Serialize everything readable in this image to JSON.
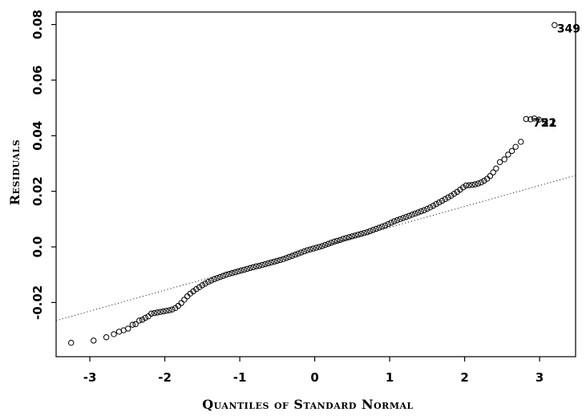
{
  "chart_data": {
    "type": "scatter",
    "title": "",
    "xlabel": "Quantiles of Standard Normal",
    "ylabel": "Residuals",
    "xlim": [
      -3.45,
      3.48
    ],
    "ylim": [
      -0.0395,
      0.0845
    ],
    "x_ticks": [
      -3,
      -2,
      -1,
      0,
      1,
      2,
      3
    ],
    "x_tick_labels": [
      "-3",
      "-2",
      "-1",
      "0",
      "1",
      "2",
      "3"
    ],
    "y_ticks": [
      -0.02,
      0.0,
      0.02,
      0.04,
      0.06,
      0.08
    ],
    "y_tick_labels": [
      "-0.02",
      "0.0",
      "0.02",
      "0.04",
      "0.06",
      "0.08"
    ],
    "grid": false,
    "marker": "open-circle",
    "reference_line": {
      "style": "dotted",
      "x": [
        -3.45,
        3.48
      ],
      "y": [
        -0.0265,
        0.0257
      ]
    },
    "points": [
      {
        "x": -3.25,
        "y": -0.0345
      },
      {
        "x": -2.95,
        "y": -0.0337
      },
      {
        "x": -2.78,
        "y": -0.0325
      },
      {
        "x": -2.68,
        "y": -0.0314
      },
      {
        "x": -2.61,
        "y": -0.0305
      },
      {
        "x": -2.55,
        "y": -0.03
      },
      {
        "x": -2.49,
        "y": -0.0294
      },
      {
        "x": -2.43,
        "y": -0.028
      },
      {
        "x": -2.39,
        "y": -0.0278
      },
      {
        "x": -2.34,
        "y": -0.0265
      },
      {
        "x": -2.3,
        "y": -0.0262
      },
      {
        "x": -2.26,
        "y": -0.0255
      },
      {
        "x": -2.22,
        "y": -0.025
      },
      {
        "x": -2.18,
        "y": -0.024
      },
      {
        "x": -2.14,
        "y": -0.0238
      },
      {
        "x": -2.1,
        "y": -0.0236
      },
      {
        "x": -2.06,
        "y": -0.0234
      },
      {
        "x": -2.02,
        "y": -0.0232
      },
      {
        "x": -1.98,
        "y": -0.023
      },
      {
        "x": -1.94,
        "y": -0.0228
      },
      {
        "x": -1.9,
        "y": -0.0225
      },
      {
        "x": -1.86,
        "y": -0.022
      },
      {
        "x": -1.82,
        "y": -0.0212
      },
      {
        "x": -1.78,
        "y": -0.0202
      },
      {
        "x": -1.74,
        "y": -0.019
      },
      {
        "x": -1.7,
        "y": -0.0178
      },
      {
        "x": -1.66,
        "y": -0.0168
      },
      {
        "x": -1.62,
        "y": -0.016
      },
      {
        "x": -1.58,
        "y": -0.0152
      },
      {
        "x": -1.54,
        "y": -0.0145
      },
      {
        "x": -1.5,
        "y": -0.0138
      },
      {
        "x": -1.46,
        "y": -0.0132
      },
      {
        "x": -1.42,
        "y": -0.0126
      },
      {
        "x": -1.38,
        "y": -0.0121
      },
      {
        "x": -1.34,
        "y": -0.0116
      },
      {
        "x": -1.3,
        "y": -0.0112
      },
      {
        "x": -1.26,
        "y": -0.0108
      },
      {
        "x": -1.22,
        "y": -0.0104
      },
      {
        "x": -1.18,
        "y": -0.01
      },
      {
        "x": -1.14,
        "y": -0.0097
      },
      {
        "x": -1.1,
        "y": -0.0094
      },
      {
        "x": -1.06,
        "y": -0.0091
      },
      {
        "x": -1.02,
        "y": -0.0088
      },
      {
        "x": -0.98,
        "y": -0.0085
      },
      {
        "x": -0.94,
        "y": -0.0082
      },
      {
        "x": -0.9,
        "y": -0.0079
      },
      {
        "x": -0.86,
        "y": -0.0076
      },
      {
        "x": -0.82,
        "y": -0.0073
      },
      {
        "x": -0.78,
        "y": -0.007
      },
      {
        "x": -0.74,
        "y": -0.0068
      },
      {
        "x": -0.7,
        "y": -0.0065
      },
      {
        "x": -0.66,
        "y": -0.0062
      },
      {
        "x": -0.62,
        "y": -0.0059
      },
      {
        "x": -0.58,
        "y": -0.0056
      },
      {
        "x": -0.54,
        "y": -0.0053
      },
      {
        "x": -0.5,
        "y": -0.005
      },
      {
        "x": -0.46,
        "y": -0.0047
      },
      {
        "x": -0.42,
        "y": -0.0044
      },
      {
        "x": -0.38,
        "y": -0.004
      },
      {
        "x": -0.34,
        "y": -0.0036
      },
      {
        "x": -0.3,
        "y": -0.0032
      },
      {
        "x": -0.26,
        "y": -0.0028
      },
      {
        "x": -0.22,
        "y": -0.0024
      },
      {
        "x": -0.18,
        "y": -0.002
      },
      {
        "x": -0.14,
        "y": -0.0016
      },
      {
        "x": -0.1,
        "y": -0.0012
      },
      {
        "x": -0.06,
        "y": -0.0009
      },
      {
        "x": -0.02,
        "y": -0.0006
      },
      {
        "x": 0.02,
        "y": -0.0003
      },
      {
        "x": 0.06,
        "y": 0.0
      },
      {
        "x": 0.1,
        "y": 0.0003
      },
      {
        "x": 0.14,
        "y": 0.0007
      },
      {
        "x": 0.18,
        "y": 0.0011
      },
      {
        "x": 0.22,
        "y": 0.0015
      },
      {
        "x": 0.26,
        "y": 0.0019
      },
      {
        "x": 0.3,
        "y": 0.0022
      },
      {
        "x": 0.34,
        "y": 0.0025
      },
      {
        "x": 0.38,
        "y": 0.0029
      },
      {
        "x": 0.42,
        "y": 0.0032
      },
      {
        "x": 0.46,
        "y": 0.0035
      },
      {
        "x": 0.5,
        "y": 0.0038
      },
      {
        "x": 0.54,
        "y": 0.0041
      },
      {
        "x": 0.58,
        "y": 0.0044
      },
      {
        "x": 0.62,
        "y": 0.0047
      },
      {
        "x": 0.66,
        "y": 0.005
      },
      {
        "x": 0.7,
        "y": 0.0053
      },
      {
        "x": 0.74,
        "y": 0.0057
      },
      {
        "x": 0.78,
        "y": 0.0061
      },
      {
        "x": 0.82,
        "y": 0.0065
      },
      {
        "x": 0.86,
        "y": 0.0069
      },
      {
        "x": 0.9,
        "y": 0.0073
      },
      {
        "x": 0.94,
        "y": 0.0077
      },
      {
        "x": 0.98,
        "y": 0.0082
      },
      {
        "x": 1.02,
        "y": 0.0087
      },
      {
        "x": 1.06,
        "y": 0.0092
      },
      {
        "x": 1.1,
        "y": 0.0096
      },
      {
        "x": 1.14,
        "y": 0.01
      },
      {
        "x": 1.18,
        "y": 0.0104
      },
      {
        "x": 1.22,
        "y": 0.0108
      },
      {
        "x": 1.26,
        "y": 0.0112
      },
      {
        "x": 1.3,
        "y": 0.0116
      },
      {
        "x": 1.34,
        "y": 0.012
      },
      {
        "x": 1.38,
        "y": 0.0124
      },
      {
        "x": 1.42,
        "y": 0.0128
      },
      {
        "x": 1.46,
        "y": 0.0132
      },
      {
        "x": 1.5,
        "y": 0.0137
      },
      {
        "x": 1.54,
        "y": 0.0142
      },
      {
        "x": 1.58,
        "y": 0.0148
      },
      {
        "x": 1.62,
        "y": 0.0154
      },
      {
        "x": 1.66,
        "y": 0.016
      },
      {
        "x": 1.7,
        "y": 0.0166
      },
      {
        "x": 1.74,
        "y": 0.0172
      },
      {
        "x": 1.78,
        "y": 0.0178
      },
      {
        "x": 1.82,
        "y": 0.0184
      },
      {
        "x": 1.86,
        "y": 0.0191
      },
      {
        "x": 1.9,
        "y": 0.0198
      },
      {
        "x": 1.94,
        "y": 0.0206
      },
      {
        "x": 1.98,
        "y": 0.0214
      },
      {
        "x": 2.02,
        "y": 0.0221
      },
      {
        "x": 2.06,
        "y": 0.0222
      },
      {
        "x": 2.1,
        "y": 0.0223
      },
      {
        "x": 2.14,
        "y": 0.0225
      },
      {
        "x": 2.18,
        "y": 0.0228
      },
      {
        "x": 2.22,
        "y": 0.0232
      },
      {
        "x": 2.26,
        "y": 0.0238
      },
      {
        "x": 2.3,
        "y": 0.0245
      },
      {
        "x": 2.34,
        "y": 0.0255
      },
      {
        "x": 2.38,
        "y": 0.0268
      },
      {
        "x": 2.42,
        "y": 0.0282
      },
      {
        "x": 2.47,
        "y": 0.0305
      },
      {
        "x": 2.53,
        "y": 0.0315
      },
      {
        "x": 2.58,
        "y": 0.0332
      },
      {
        "x": 2.63,
        "y": 0.0345
      },
      {
        "x": 2.68,
        "y": 0.036
      },
      {
        "x": 2.75,
        "y": 0.0378
      },
      {
        "x": 2.82,
        "y": 0.046
      },
      {
        "x": 2.88,
        "y": 0.0459
      },
      {
        "x": 2.93,
        "y": 0.0462
      },
      {
        "x": 2.99,
        "y": 0.0458
      },
      {
        "x": 3.2,
        "y": 0.0798
      }
    ],
    "point_labels": [
      {
        "text": "349",
        "x": 3.2,
        "y": 0.0798
      },
      {
        "text": "752",
        "x": 2.88,
        "y": 0.0459
      },
      {
        "text": "21",
        "x": 2.99,
        "y": 0.0458
      }
    ]
  }
}
